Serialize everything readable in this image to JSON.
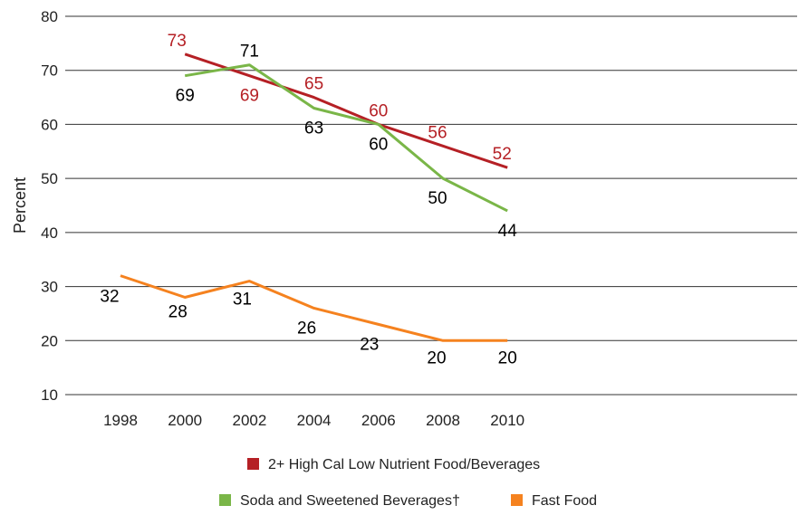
{
  "chart_data": {
    "type": "line",
    "x": [
      "1998",
      "2000",
      "2002",
      "2004",
      "2006",
      "2008",
      "2010"
    ],
    "ylabel": "Percent",
    "ylim": [
      10,
      80
    ],
    "yticks": [
      10,
      20,
      30,
      40,
      50,
      60,
      70,
      80
    ],
    "grid": "horizontal",
    "legend_position": "bottom",
    "series": [
      {
        "name": "2+ High Cal Low Nutrient Food/Beverages",
        "color": "#b52025",
        "values": [
          null,
          73,
          69,
          65,
          60,
          56,
          52
        ],
        "label_color": "#b52025"
      },
      {
        "name": "Soda and Sweetened Beverages†",
        "color": "#7ab648",
        "values": [
          null,
          69,
          71,
          63,
          60,
          50,
          44
        ],
        "label_color": "#000000"
      },
      {
        "name": "Fast Food",
        "color": "#f5821f",
        "values": [
          32,
          28,
          31,
          26,
          23,
          20,
          20
        ],
        "label_color": "#000000"
      }
    ]
  }
}
